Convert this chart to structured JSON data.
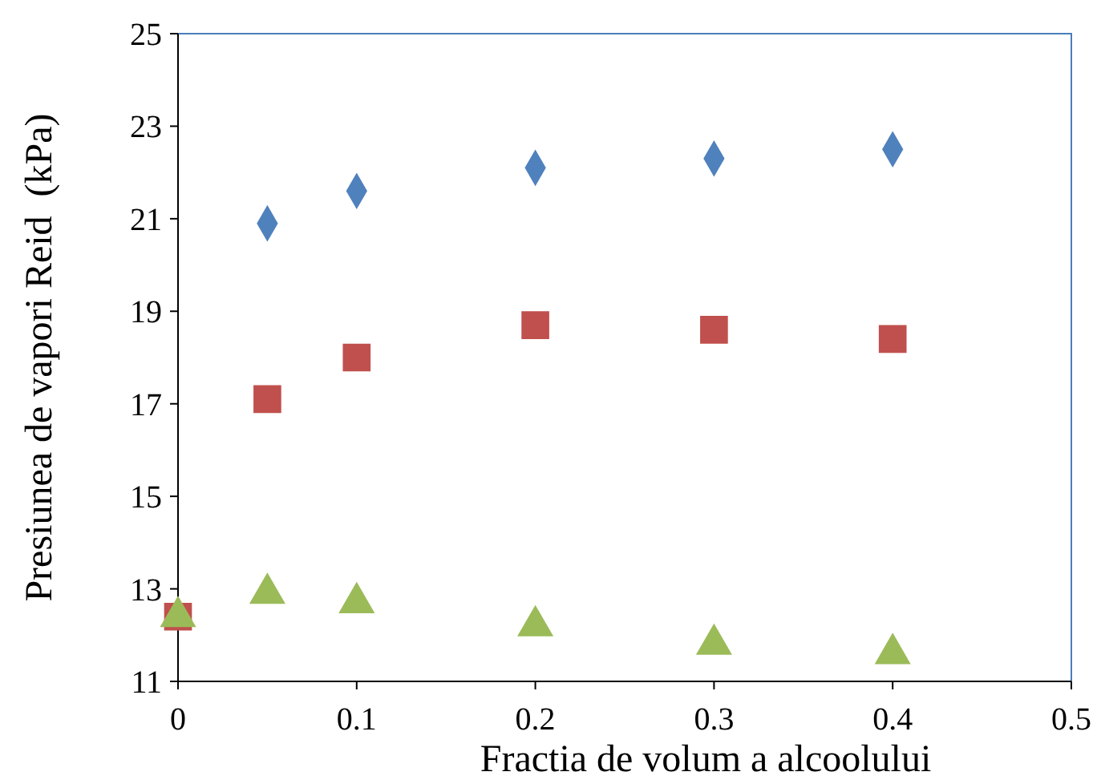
{
  "chart_data": {
    "type": "scatter",
    "xlabel": "Fractia de volum a alcoolului",
    "ylabel": "Presiunea de vapori Reid  (kPa)",
    "xlim": [
      0,
      0.5
    ],
    "xticks": [
      0,
      0.1,
      0.2,
      0.3,
      0.4,
      0.5
    ],
    "ylim": [
      11,
      25
    ],
    "yticks": [
      11,
      13,
      15,
      17,
      19,
      21,
      23,
      25
    ],
    "grid": false,
    "series": [
      {
        "color": "#4f81bd",
        "marker": "diamond",
        "x": [
          0.05,
          0.1,
          0.2,
          0.3,
          0.4
        ],
        "values": [
          20.9,
          21.6,
          22.1,
          22.3,
          22.5
        ]
      },
      {
        "color": "#c0504d",
        "marker": "square",
        "x": [
          0,
          0.05,
          0.1,
          0.2,
          0.3,
          0.4
        ],
        "values": [
          12.4,
          17.1,
          18.0,
          18.7,
          18.6,
          18.4
        ]
      },
      {
        "color": "#9bbb59",
        "marker": "triangle",
        "x": [
          0,
          0.05,
          0.1,
          0.2,
          0.3,
          0.4
        ],
        "values": [
          12.4,
          12.9,
          12.7,
          12.2,
          11.8,
          11.6
        ]
      }
    ]
  }
}
